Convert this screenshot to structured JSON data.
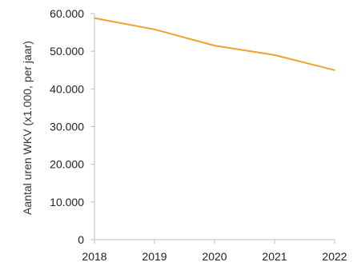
{
  "chart_data": {
    "type": "line",
    "categories": [
      "2018",
      "2019",
      "2020",
      "2021",
      "2022"
    ],
    "series": [
      {
        "values": [
          58800,
          55800,
          51500,
          49000,
          45000
        ],
        "color": "#f0a030"
      }
    ],
    "title": "",
    "xlabel": "",
    "ylabel": "Aantal uren WKV (x1.000, per jaar)",
    "ylim": [
      0,
      60000
    ],
    "yticks": [
      0,
      10000,
      20000,
      30000,
      40000,
      50000,
      60000
    ],
    "ytick_labels": [
      "0",
      "10.000",
      "20.000",
      "30.000",
      "40.000",
      "50.000",
      "60.000"
    ],
    "grid": false,
    "legend": "none",
    "axis_color": "#bfbfbf"
  }
}
